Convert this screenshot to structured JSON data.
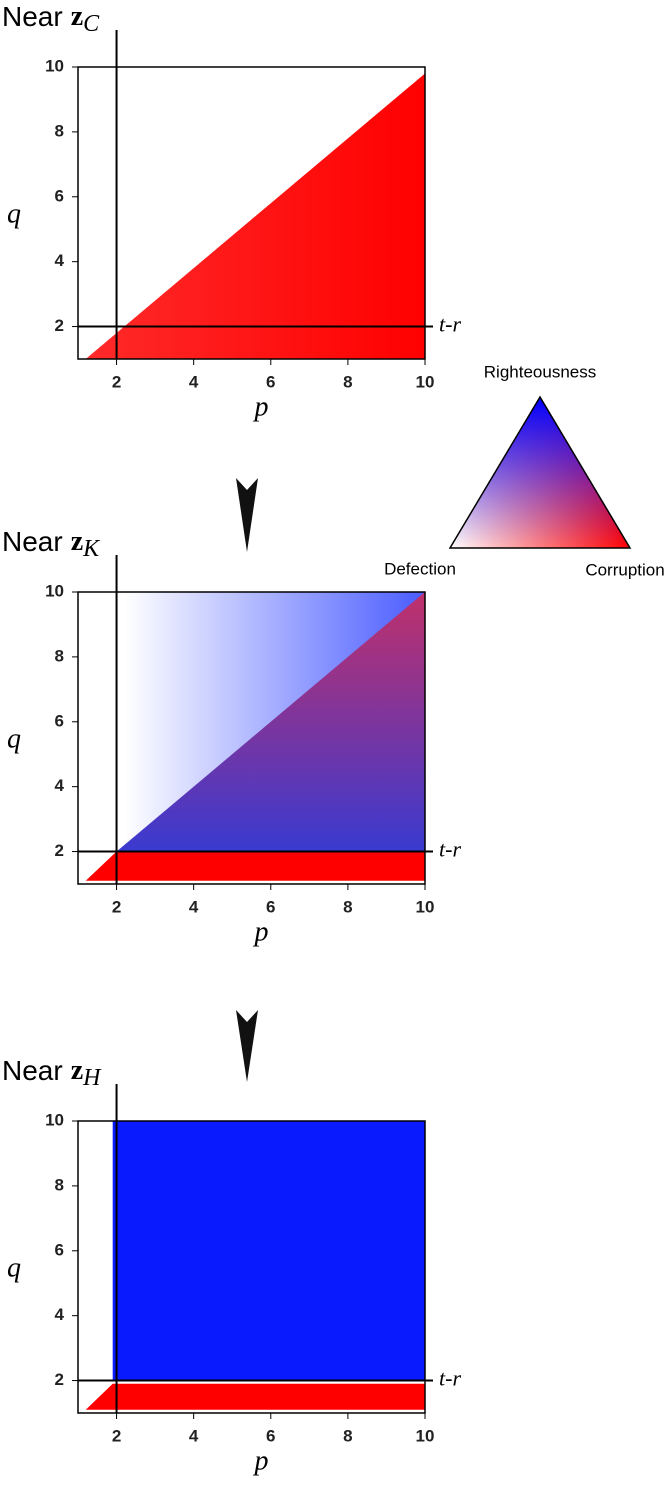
{
  "chart_data": [
    {
      "type": "heatmap",
      "title": "Near",
      "title_symbol": "z",
      "title_subscript": "C",
      "xlabel": "p",
      "ylabel": "q",
      "xlim": [
        1,
        10
      ],
      "ylim": [
        1,
        10
      ],
      "xticks": [
        2,
        4,
        6,
        8,
        10
      ],
      "yticks": [
        2,
        4,
        6,
        8,
        10
      ],
      "vline": 2,
      "hline": 2,
      "hline_label": "t-r",
      "regions": [
        {
          "colors": [
            "#ff2a2a",
            "#ff0000"
          ],
          "direction": "x",
          "points": [
            [
              1.2,
              1
            ],
            [
              10,
              1
            ],
            [
              10,
              9.8
            ]
          ]
        }
      ]
    },
    {
      "type": "heatmap",
      "title": "Near",
      "title_symbol": "z",
      "title_subscript": "K",
      "xlabel": "p",
      "ylabel": "q",
      "xlim": [
        1,
        10
      ],
      "ylim": [
        1,
        10
      ],
      "xticks": [
        2,
        4,
        6,
        8,
        10
      ],
      "yticks": [
        2,
        4,
        6,
        8,
        10
      ],
      "vline": 2,
      "hline": 2,
      "hline_label": "t-r",
      "regions": [
        {
          "colors": [
            "#ffffff",
            "#4a5cff"
          ],
          "direction": "x",
          "points": [
            [
              2.2,
              2
            ],
            [
              2.2,
              10
            ],
            [
              10,
              10
            ],
            [
              10,
              2
            ]
          ]
        },
        {
          "colors": [
            "#3a3ad0",
            "#c0306a"
          ],
          "direction": "y",
          "points": [
            [
              2,
              2
            ],
            [
              10,
              10
            ],
            [
              10,
              2
            ]
          ]
        },
        {
          "colors": [
            "#ff0000",
            "#ff0000"
          ],
          "direction": "y",
          "points": [
            [
              1.2,
              1.1
            ],
            [
              10,
              1.1
            ],
            [
              10,
              2
            ],
            [
              2,
              2
            ]
          ]
        }
      ]
    },
    {
      "type": "heatmap",
      "title": "Near",
      "title_symbol": "z",
      "title_subscript": "H",
      "xlabel": "p",
      "ylabel": "q",
      "xlim": [
        1,
        10
      ],
      "ylim": [
        1,
        10
      ],
      "xticks": [
        2,
        4,
        6,
        8,
        10
      ],
      "yticks": [
        2,
        4,
        6,
        8,
        10
      ],
      "vline": 2,
      "hline": 2,
      "hline_label": "t-r",
      "regions": [
        {
          "colors": [
            "#0a1aff",
            "#0a1aff"
          ],
          "direction": "x",
          "points": [
            [
              1.9,
              2
            ],
            [
              1.9,
              10
            ],
            [
              10,
              10
            ],
            [
              10,
              2
            ]
          ]
        },
        {
          "colors": [
            "#ff0000",
            "#ff0000"
          ],
          "direction": "y",
          "points": [
            [
              1.2,
              1.1
            ],
            [
              10,
              1.1
            ],
            [
              10,
              1.9
            ],
            [
              1.9,
              1.9
            ]
          ]
        }
      ]
    }
  ],
  "legend": {
    "top": "Righteousness",
    "left": "Defection",
    "right": "Corruption",
    "top_color": "#0000ff",
    "left_color": "#ffffff",
    "right_color": "#ff0000"
  }
}
